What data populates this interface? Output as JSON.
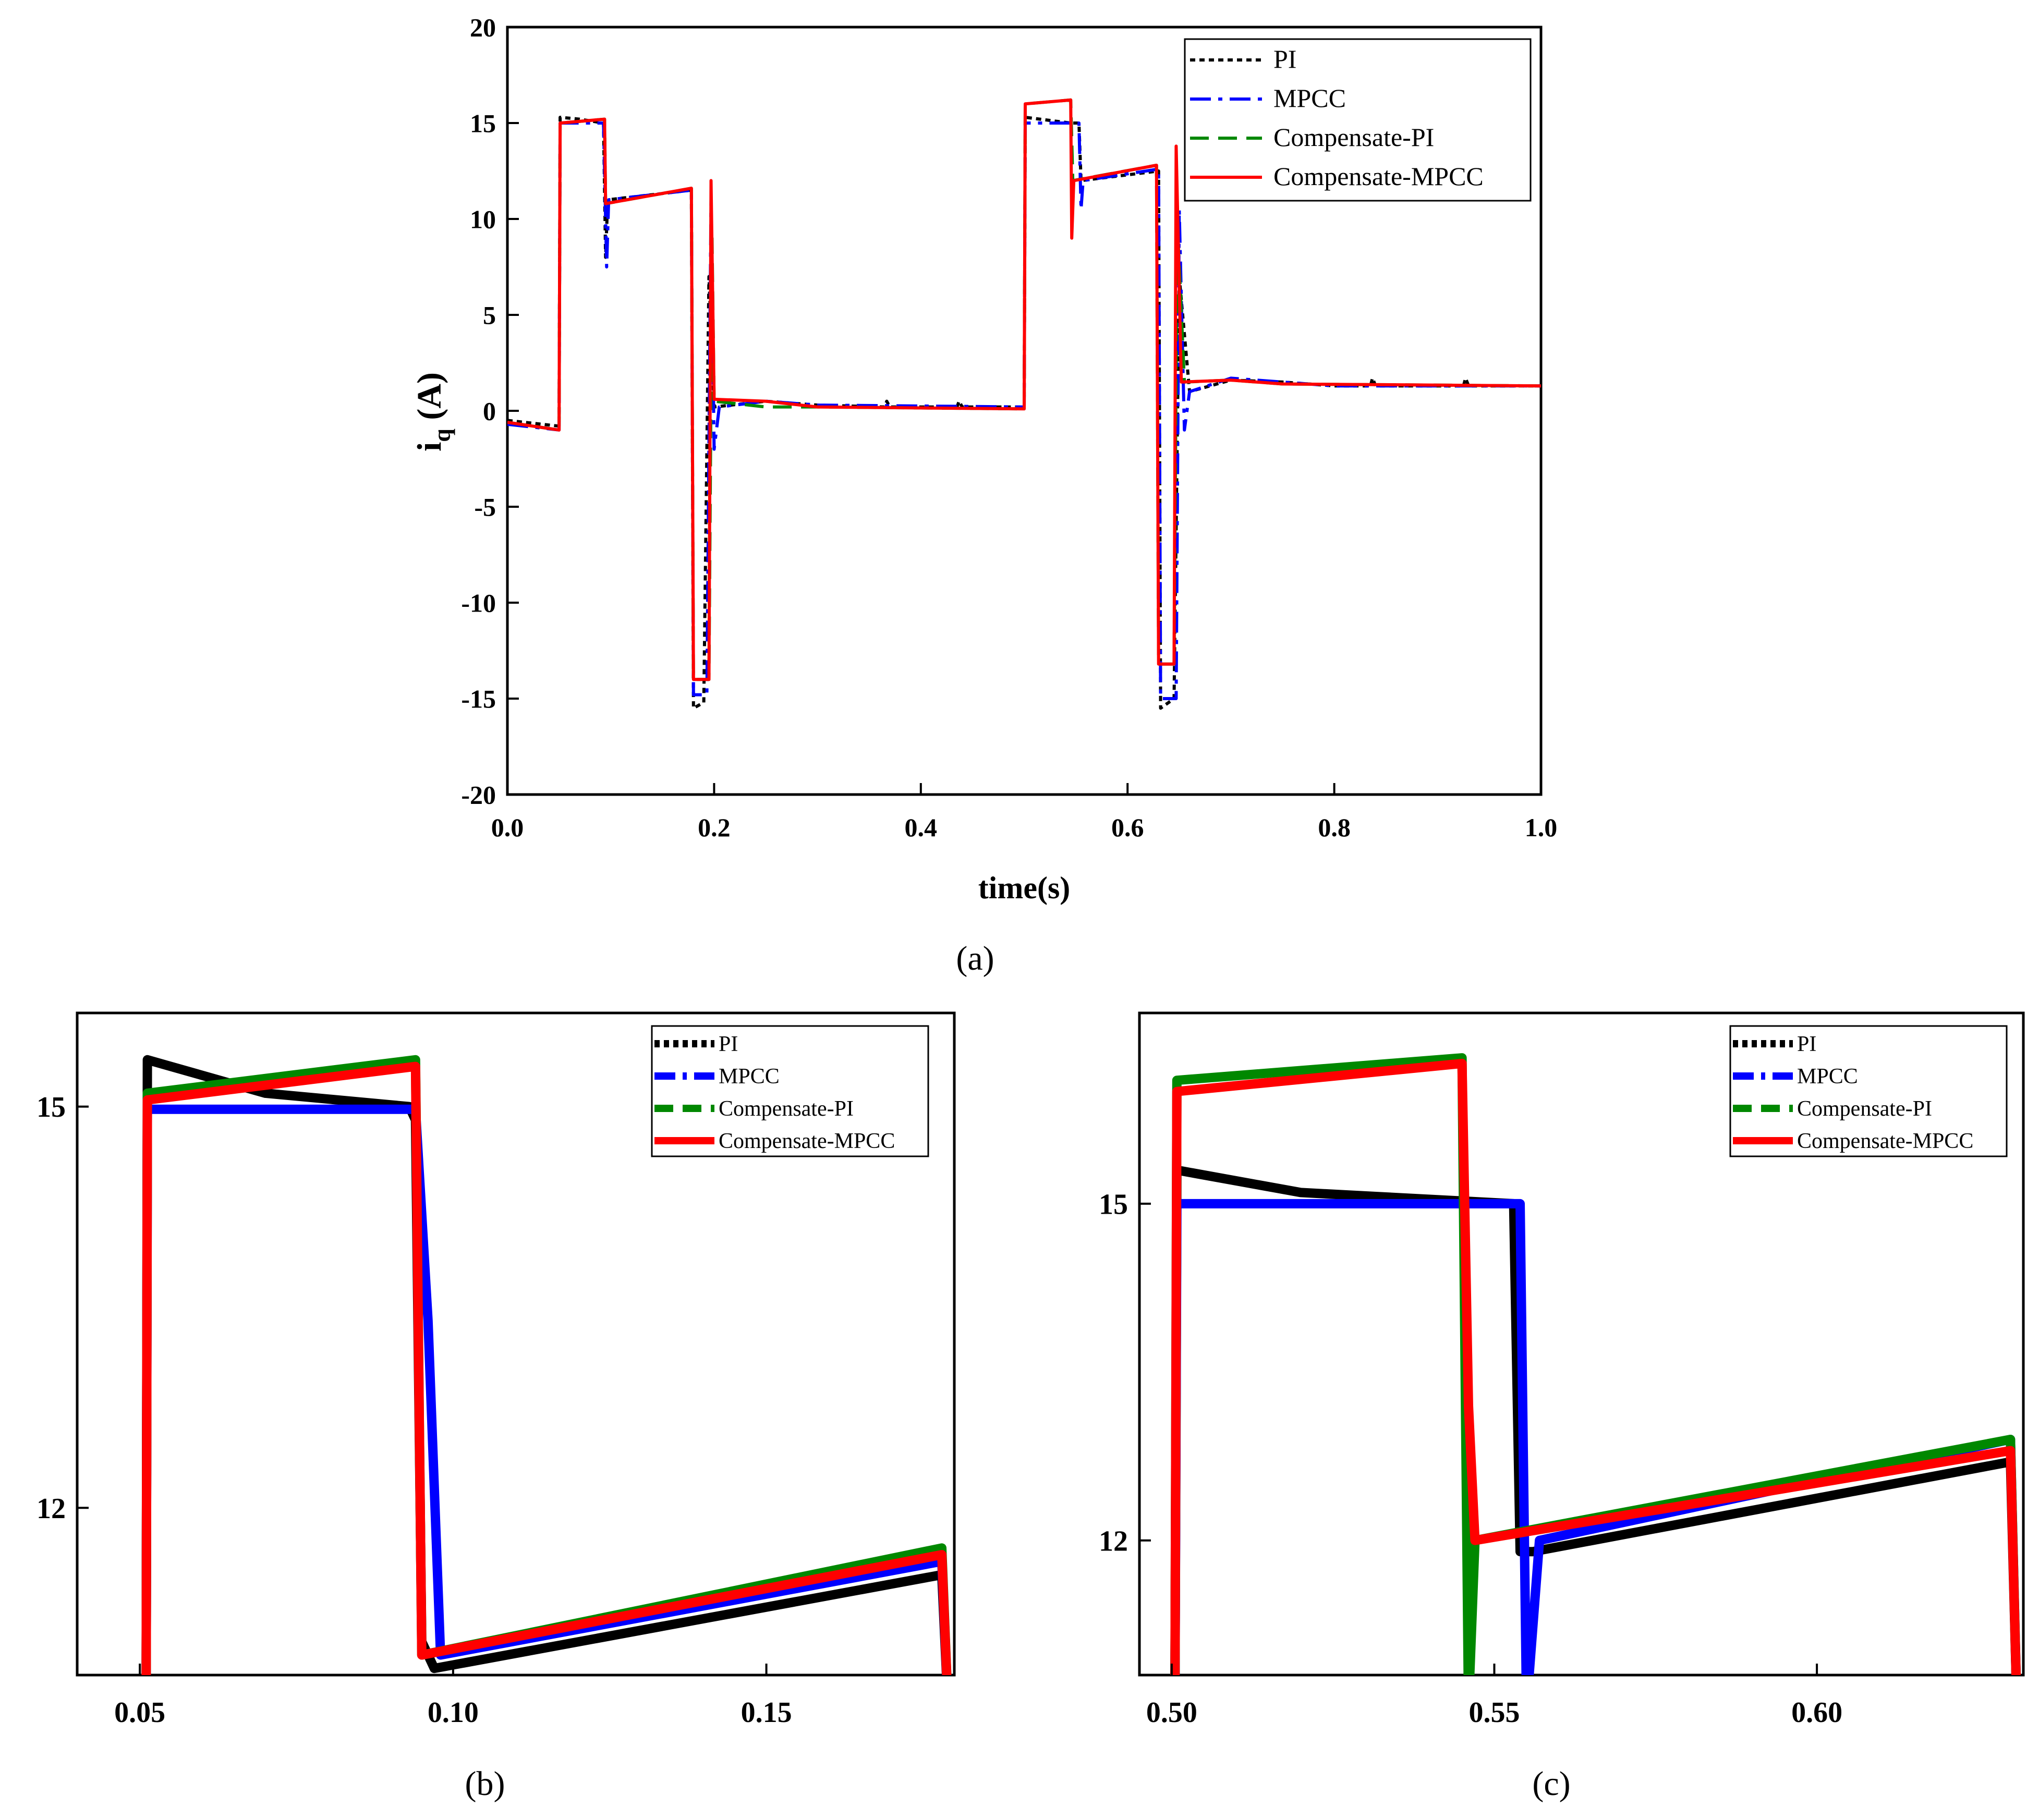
{
  "colors": {
    "PI": "#000000",
    "MPCC": "#0000ff",
    "Compensate-PI": "#008800",
    "Compensate-MPCC": "#ff0000"
  },
  "legend_entries": [
    "PI",
    "MPCC",
    "Compensate-PI",
    "Compensate-MPCC"
  ],
  "chart_data": [
    {
      "id": "a",
      "caption_letter": "a",
      "type": "line",
      "xlabel": "time(s)",
      "ylabel_main": "i",
      "ylabel_sub": "q",
      "ylabel_unit": " (A)",
      "xlim": [
        0,
        1
      ],
      "ylim": [
        -20,
        20
      ],
      "xticks": [
        "0.0",
        "0.2",
        "0.4",
        "0.6",
        "0.8",
        "1.0"
      ],
      "yticks": [
        "-20",
        "-15",
        "-10",
        "-5",
        "0",
        "5",
        "10",
        "15",
        "20"
      ],
      "legend_position": "top-right",
      "series": [
        {
          "name": "PI",
          "points": [
            [
              0,
              -0.5
            ],
            [
              0.05,
              -0.8
            ],
            [
              0.051,
              15.3
            ],
            [
              0.07,
              15.2
            ],
            [
              0.093,
              15.0
            ],
            [
              0.095,
              8.0
            ],
            [
              0.097,
              11.0
            ],
            [
              0.178,
              11.5
            ],
            [
              0.18,
              -15.5
            ],
            [
              0.19,
              -15.2
            ],
            [
              0.195,
              7
            ],
            [
              0.2,
              0.2
            ],
            [
              0.25,
              0.5
            ],
            [
              0.3,
              0.3
            ],
            [
              0.365,
              0.2
            ],
            [
              0.367,
              0.5
            ],
            [
              0.37,
              0.2
            ],
            [
              0.435,
              0.2
            ],
            [
              0.437,
              0.5
            ],
            [
              0.44,
              0.2
            ],
            [
              0.5,
              0.2
            ],
            [
              0.501,
              15.3
            ],
            [
              0.53,
              15.1
            ],
            [
              0.545,
              15.0
            ],
            [
              0.553,
              15.0
            ],
            [
              0.555,
              12.0
            ],
            [
              0.63,
              12.5
            ],
            [
              0.632,
              -15.5
            ],
            [
              0.645,
              -15.0
            ],
            [
              0.65,
              7
            ],
            [
              0.66,
              1.0
            ],
            [
              0.7,
              1.6
            ],
            [
              0.75,
              1.5
            ],
            [
              0.8,
              1.3
            ],
            [
              0.835,
              1.3
            ],
            [
              0.837,
              1.7
            ],
            [
              0.84,
              1.3
            ],
            [
              0.925,
              1.3
            ],
            [
              0.927,
              1.7
            ],
            [
              0.93,
              1.3
            ],
            [
              1.0,
              1.3
            ]
          ]
        },
        {
          "name": "MPCC",
          "points": [
            [
              0,
              -0.7
            ],
            [
              0.05,
              -1.0
            ],
            [
              0.051,
              15.0
            ],
            [
              0.093,
              15.0
            ],
            [
              0.096,
              7.5
            ],
            [
              0.098,
              11.0
            ],
            [
              0.178,
              11.5
            ],
            [
              0.18,
              -14.8
            ],
            [
              0.193,
              -14.8
            ],
            [
              0.197,
              11
            ],
            [
              0.2,
              -2
            ],
            [
              0.205,
              0.2
            ],
            [
              0.25,
              0.5
            ],
            [
              0.3,
              0.3
            ],
            [
              0.5,
              0.2
            ],
            [
              0.501,
              15.0
            ],
            [
              0.553,
              15.0
            ],
            [
              0.555,
              10.5
            ],
            [
              0.557,
              12.0
            ],
            [
              0.63,
              12.6
            ],
            [
              0.632,
              -15.0
            ],
            [
              0.647,
              -15.0
            ],
            [
              0.65,
              10.5
            ],
            [
              0.655,
              -1
            ],
            [
              0.66,
              1.0
            ],
            [
              0.7,
              1.7
            ],
            [
              0.75,
              1.5
            ],
            [
              0.8,
              1.3
            ],
            [
              1.0,
              1.3
            ]
          ]
        },
        {
          "name": "Compensate-PI",
          "points": [
            [
              0,
              -0.6
            ],
            [
              0.05,
              -1.0
            ],
            [
              0.051,
              15.0
            ],
            [
              0.094,
              15.2
            ],
            [
              0.095,
              10.8
            ],
            [
              0.178,
              11.6
            ],
            [
              0.18,
              -14.0
            ],
            [
              0.195,
              -14.0
            ],
            [
              0.198,
              9
            ],
            [
              0.2,
              0.5
            ],
            [
              0.25,
              0.2
            ],
            [
              0.3,
              0.2
            ],
            [
              0.5,
              0.1
            ],
            [
              0.501,
              16.0
            ],
            [
              0.545,
              16.2
            ],
            [
              0.547,
              12.0
            ],
            [
              0.628,
              12.8
            ],
            [
              0.63,
              -13.2
            ],
            [
              0.645,
              -13.2
            ],
            [
              0.648,
              10
            ],
            [
              0.655,
              1.5
            ],
            [
              0.7,
              1.6
            ],
            [
              0.75,
              1.4
            ],
            [
              1.0,
              1.3
            ]
          ]
        },
        {
          "name": "Compensate-MPCC",
          "points": [
            [
              0,
              -0.6
            ],
            [
              0.05,
              -1.0
            ],
            [
              0.051,
              15.0
            ],
            [
              0.094,
              15.2
            ],
            [
              0.095,
              10.8
            ],
            [
              0.178,
              11.6
            ],
            [
              0.18,
              -14.0
            ],
            [
              0.195,
              -14.0
            ],
            [
              0.197,
              12
            ],
            [
              0.2,
              0.6
            ],
            [
              0.25,
              0.5
            ],
            [
              0.3,
              0.2
            ],
            [
              0.5,
              0.1
            ],
            [
              0.501,
              16.0
            ],
            [
              0.545,
              16.2
            ],
            [
              0.546,
              9
            ],
            [
              0.548,
              12.0
            ],
            [
              0.628,
              12.8
            ],
            [
              0.63,
              -13.2
            ],
            [
              0.645,
              -13.2
            ],
            [
              0.647,
              13.8
            ],
            [
              0.652,
              1.5
            ],
            [
              0.7,
              1.6
            ],
            [
              0.75,
              1.4
            ],
            [
              1.0,
              1.3
            ]
          ]
        }
      ]
    },
    {
      "id": "b",
      "caption_letter": "b",
      "type": "line",
      "xlim": [
        0.04,
        0.18
      ],
      "ylim": [
        10.75,
        15.7
      ],
      "xticks": [
        "0.05",
        "0.10",
        "0.15"
      ],
      "yticks": [
        "12",
        "15"
      ],
      "legend_position": "top-right",
      "series": [
        {
          "name": "PI",
          "points": [
            [
              0.051,
              10.5
            ],
            [
              0.0512,
              15.35
            ],
            [
              0.07,
              15.1
            ],
            [
              0.093,
              15.0
            ],
            [
              0.094,
              14.9
            ],
            [
              0.095,
              11.0
            ],
            [
              0.097,
              10.8
            ],
            [
              0.178,
              11.5
            ],
            [
              0.179,
              10.5
            ]
          ]
        },
        {
          "name": "MPCC",
          "points": [
            [
              0.051,
              10.5
            ],
            [
              0.0512,
              14.98
            ],
            [
              0.093,
              14.98
            ],
            [
              0.094,
              14.98
            ],
            [
              0.096,
              13.4
            ],
            [
              0.098,
              10.9
            ],
            [
              0.178,
              11.6
            ],
            [
              0.179,
              10.5
            ]
          ]
        },
        {
          "name": "Compensate-PI",
          "points": [
            [
              0.051,
              10.5
            ],
            [
              0.0512,
              15.1
            ],
            [
              0.094,
              15.35
            ],
            [
              0.095,
              10.9
            ],
            [
              0.178,
              11.7
            ],
            [
              0.179,
              10.5
            ]
          ]
        },
        {
          "name": "Compensate-MPCC",
          "points": [
            [
              0.051,
              10.5
            ],
            [
              0.0512,
              15.05
            ],
            [
              0.094,
              15.3
            ],
            [
              0.095,
              10.9
            ],
            [
              0.178,
              11.65
            ],
            [
              0.179,
              10.5
            ]
          ]
        }
      ]
    },
    {
      "id": "c",
      "caption_letter": "c",
      "type": "line",
      "xlim": [
        0.495,
        0.632
      ],
      "ylim": [
        10.8,
        16.7
      ],
      "xticks": [
        "0.50",
        "0.55",
        "0.60"
      ],
      "yticks": [
        "12",
        "15"
      ],
      "legend_position": "top-right",
      "series": [
        {
          "name": "PI",
          "points": [
            [
              0.5005,
              10.5
            ],
            [
              0.5008,
              15.3
            ],
            [
              0.52,
              15.1
            ],
            [
              0.553,
              15.0
            ],
            [
              0.554,
              11.9
            ],
            [
              0.556,
              11.9
            ],
            [
              0.63,
              12.7
            ],
            [
              0.631,
              10.5
            ]
          ]
        },
        {
          "name": "MPCC",
          "points": [
            [
              0.5005,
              10.5
            ],
            [
              0.5008,
              15.0
            ],
            [
              0.553,
              15.0
            ],
            [
              0.554,
              15.0
            ],
            [
              0.555,
              10.5
            ],
            [
              0.557,
              12.0
            ],
            [
              0.63,
              12.9
            ],
            [
              0.631,
              10.5
            ]
          ]
        },
        {
          "name": "Compensate-PI",
          "points": [
            [
              0.5005,
              10.5
            ],
            [
              0.5008,
              16.1
            ],
            [
              0.545,
              16.3
            ],
            [
              0.546,
              10.5
            ],
            [
              0.547,
              12.0
            ],
            [
              0.63,
              12.9
            ],
            [
              0.631,
              10.5
            ]
          ]
        },
        {
          "name": "Compensate-MPCC",
          "points": [
            [
              0.5005,
              10.5
            ],
            [
              0.5008,
              16.0
            ],
            [
              0.545,
              16.25
            ],
            [
              0.546,
              13.2
            ],
            [
              0.547,
              12.0
            ],
            [
              0.63,
              12.8
            ],
            [
              0.631,
              10.5
            ]
          ]
        }
      ]
    }
  ]
}
